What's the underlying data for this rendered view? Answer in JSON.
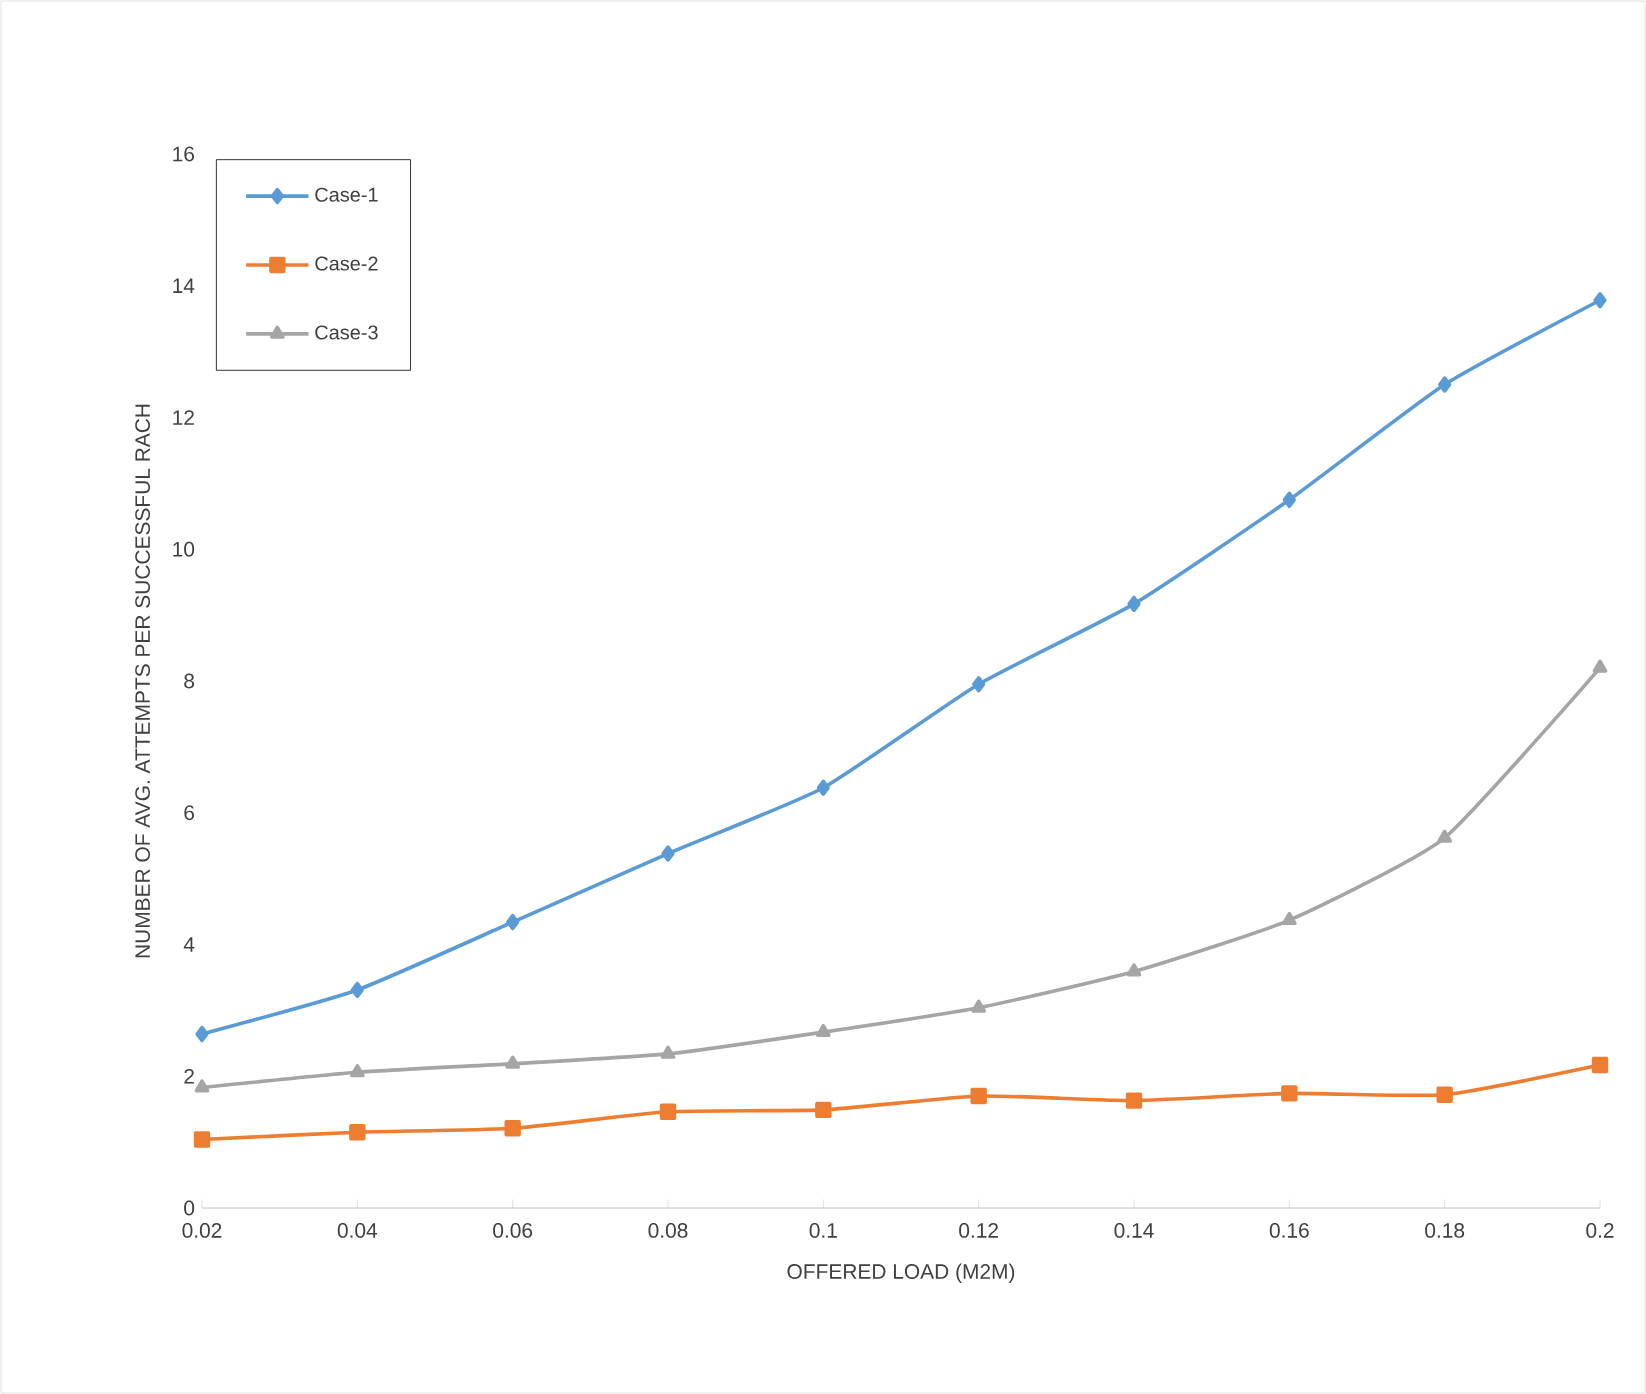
{
  "chart_data": {
    "type": "line",
    "xlabel": "OFFERED LOAD (M2M)",
    "ylabel": "NUMBER OF AVG. ATTEMPTS PER SUCCESSFUL RACH",
    "x": [
      0.02,
      0.04,
      0.06,
      0.08,
      0.1,
      0.12,
      0.14,
      0.16,
      0.18,
      0.2
    ],
    "series": [
      {
        "name": "Case-1",
        "color": "#5b9bd5",
        "marker": "diamond",
        "values": [
          2.64,
          3.31,
          4.34,
          5.38,
          6.38,
          7.95,
          9.17,
          10.75,
          12.5,
          13.78
        ]
      },
      {
        "name": "Case-2",
        "color": "#ed7d31",
        "marker": "square",
        "values": [
          1.04,
          1.15,
          1.21,
          1.46,
          1.49,
          1.7,
          1.63,
          1.74,
          1.72,
          2.17
        ]
      },
      {
        "name": "Case-3",
        "color": "#a5a5a5",
        "marker": "triangle",
        "values": [
          1.83,
          2.06,
          2.19,
          2.34,
          2.67,
          3.04,
          3.59,
          4.37,
          5.62,
          8.2
        ]
      }
    ],
    "xlim": [
      0.02,
      0.2
    ],
    "xticks": [
      0.02,
      0.04,
      0.06,
      0.08,
      0.1,
      0.12,
      0.14,
      0.16,
      0.18,
      0.2
    ],
    "ylim": [
      0,
      16
    ],
    "yticks": [
      0,
      2,
      4,
      6,
      8,
      10,
      12,
      14,
      16
    ],
    "grid": false,
    "legend": "top left"
  }
}
